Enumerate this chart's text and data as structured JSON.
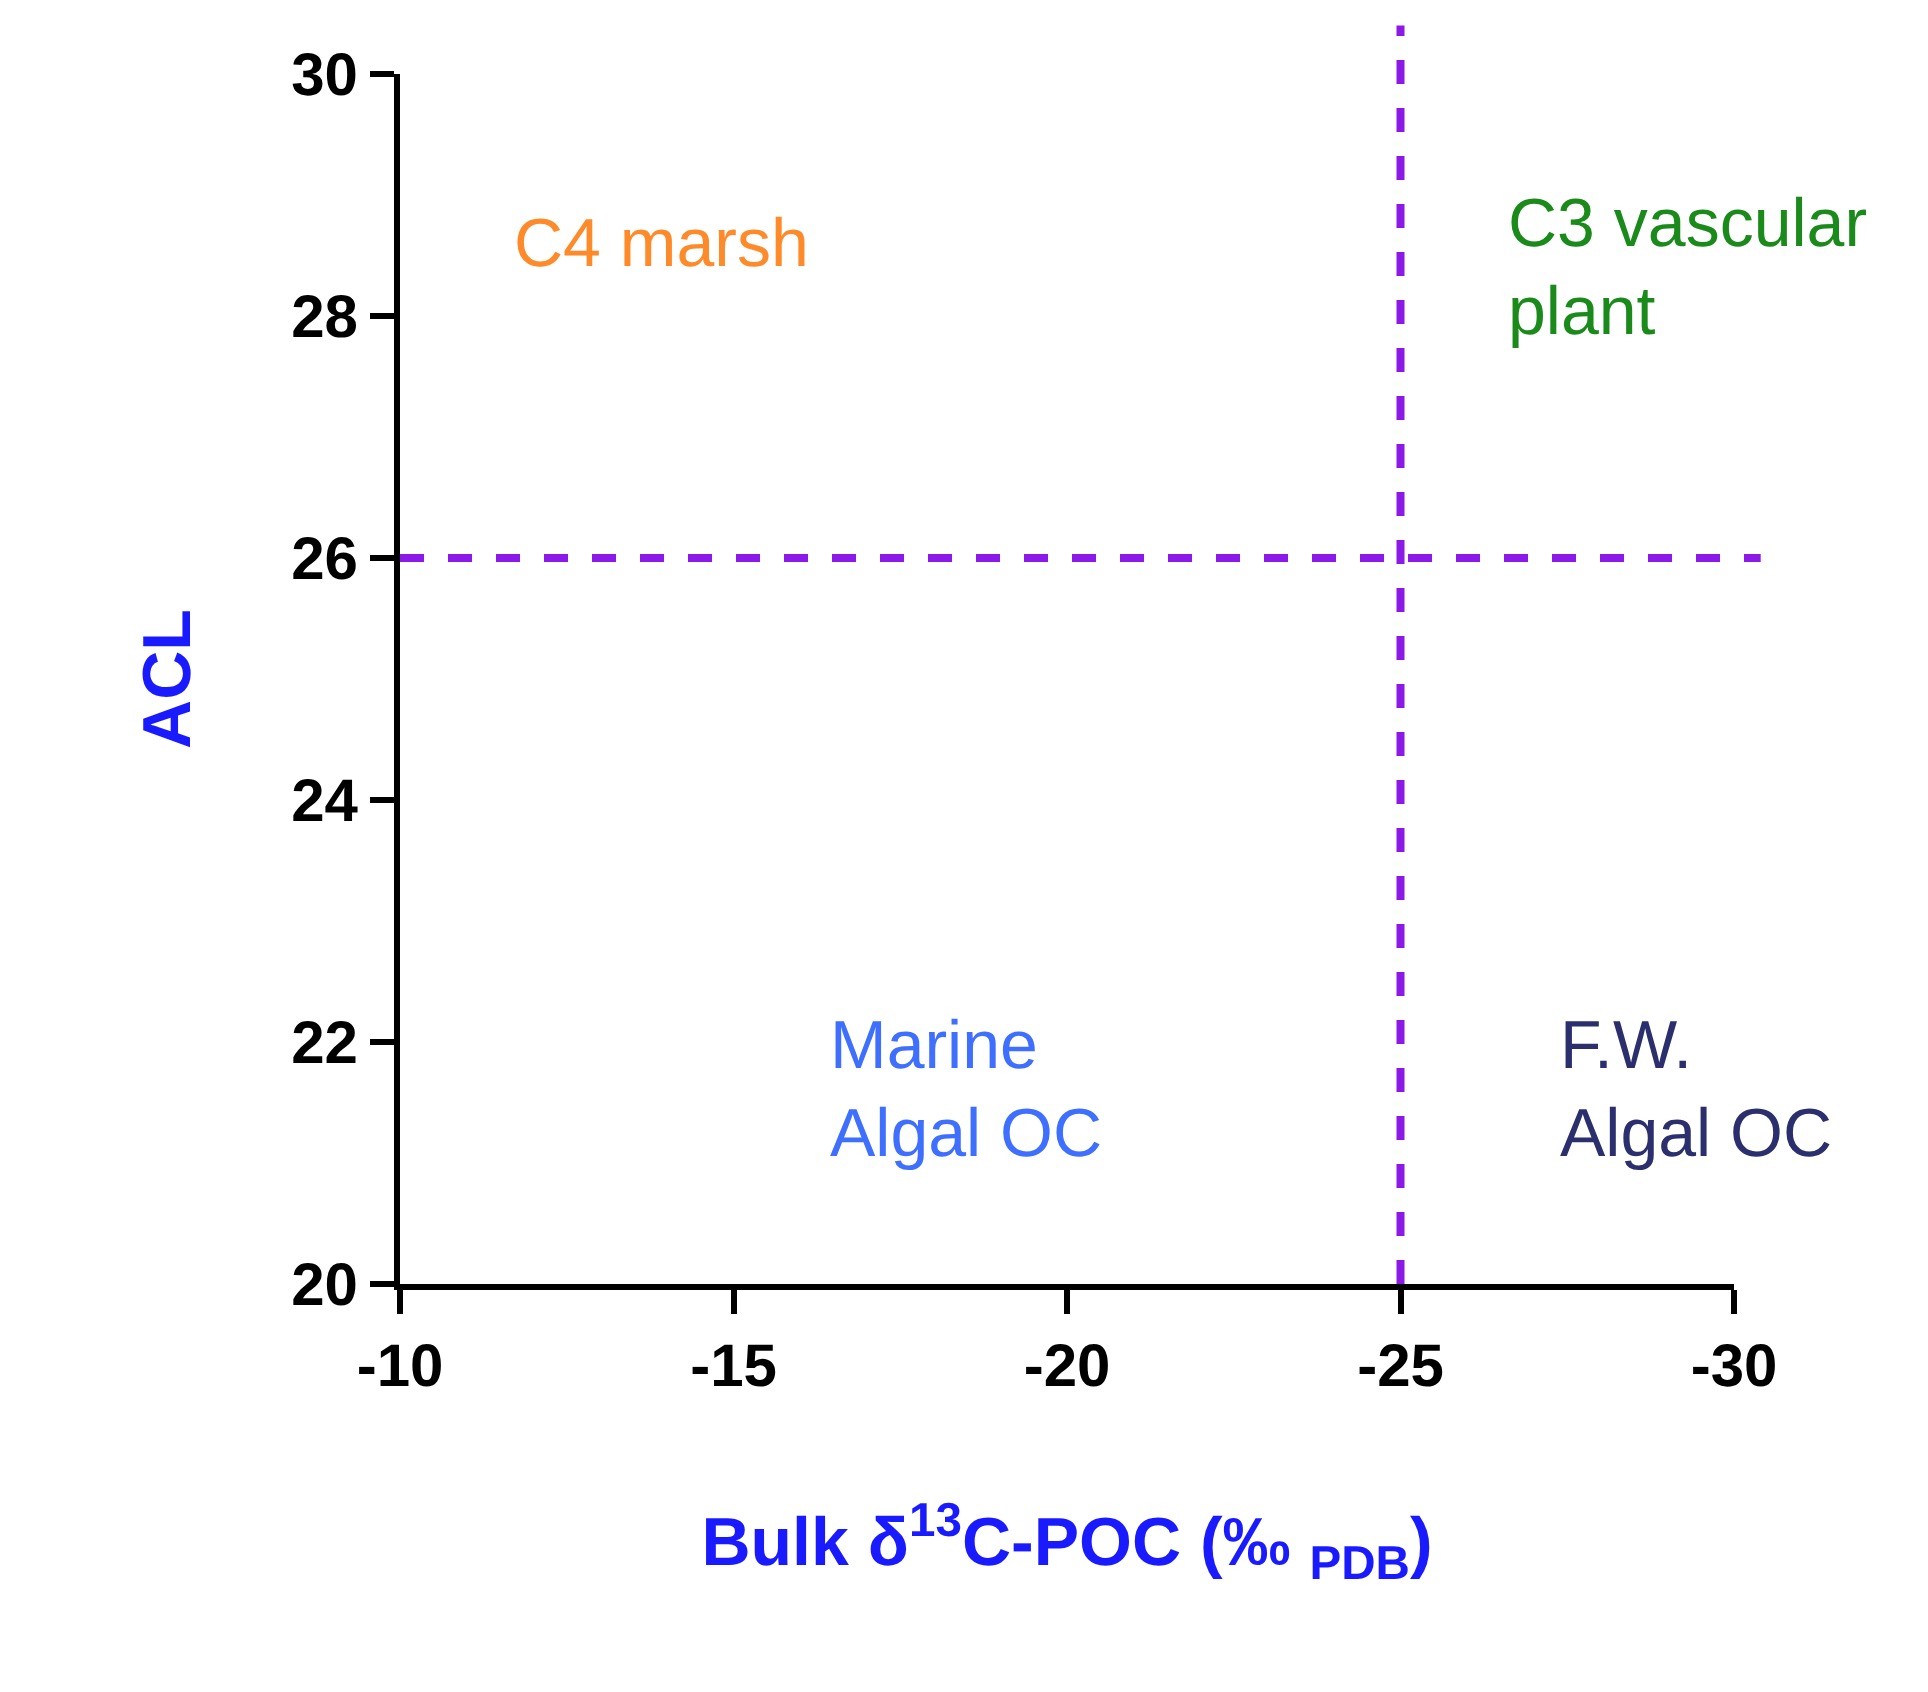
{
  "chart_data": {
    "type": "scatter",
    "xlabel": "Bulk δ$^{13}$C-POC (‰ $_{PDB}$)",
    "ylabel": "ACL",
    "xlim": [
      -10,
      -30
    ],
    "xticks": [
      -10,
      -15,
      -20,
      -25,
      -30
    ],
    "ylim": [
      20,
      30
    ],
    "yticks": [
      20,
      22,
      24,
      26,
      28,
      30
    ],
    "ref_lines": [
      {
        "axis": "x",
        "value": -25,
        "color": "#8b1ae8",
        "line_style": "dashed"
      },
      {
        "axis": "y",
        "value": 26,
        "color": "#8b1ae8",
        "line_style": "dashed"
      }
    ],
    "annotations": [
      "C4 marsh",
      "C3 vascular\nplant",
      "Marine\nAlgal OC",
      "F.W.\nAlgal OC"
    ]
  }
}
